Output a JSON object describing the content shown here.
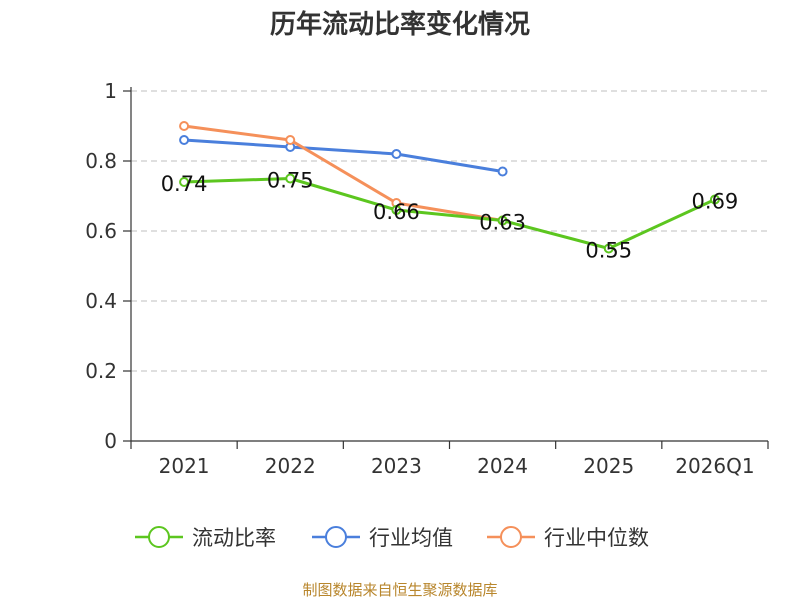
{
  "chart_data": {
    "type": "line",
    "title": "历年流动比率变化情况",
    "categories": [
      "2021",
      "2022",
      "2023",
      "2024",
      "2025",
      "2026Q1"
    ],
    "ylim": [
      0,
      1
    ],
    "yticks": [
      0,
      0.2,
      0.4,
      0.6,
      0.8,
      1
    ],
    "ytick_labels": [
      "0",
      "0.2",
      "0.4",
      "0.6",
      "0.8",
      "1"
    ],
    "grid": true,
    "legend_position": "bottom",
    "series": [
      {
        "name": "流动比率",
        "color": "#5cc61f",
        "values": [
          0.74,
          0.75,
          0.66,
          0.63,
          0.55,
          0.69
        ],
        "labels": [
          "0.74",
          "0.75",
          "0.66",
          "0.63",
          "0.55",
          "0.69"
        ],
        "show_labels": true
      },
      {
        "name": "行业均值",
        "color": "#4a7fdc",
        "values": [
          0.86,
          0.84,
          0.82,
          0.77,
          null,
          null
        ],
        "show_labels": false
      },
      {
        "name": "行业中位数",
        "color": "#f5905a",
        "values": [
          0.9,
          0.86,
          0.68,
          0.63,
          null,
          null
        ],
        "show_labels": false
      }
    ]
  },
  "footer": {
    "source": "制图数据来自恒生聚源数据库"
  }
}
